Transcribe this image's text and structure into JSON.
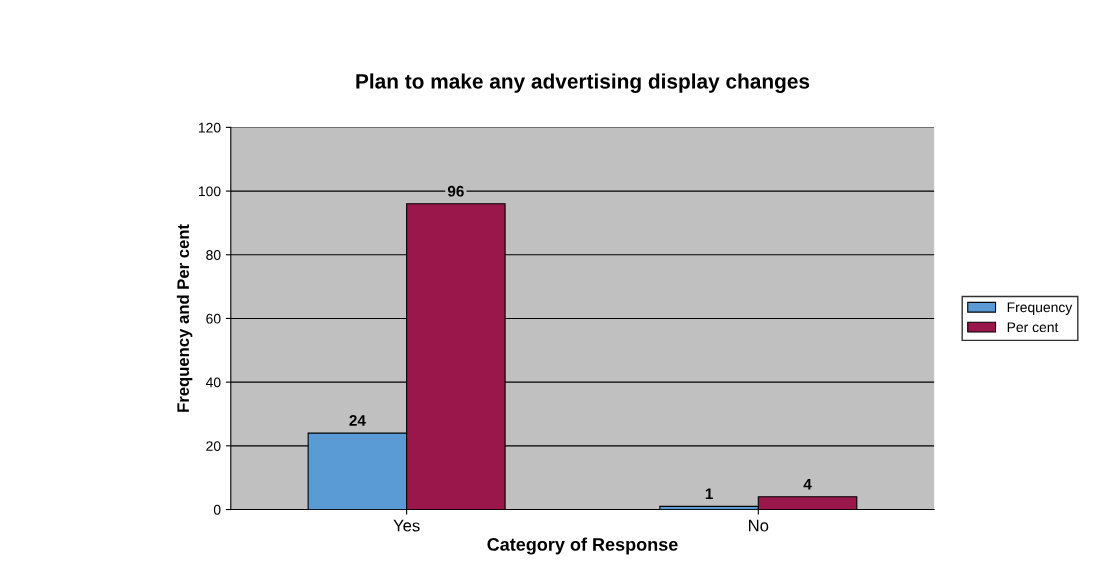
{
  "chart_data": {
    "type": "bar",
    "title": "Plan to make any advertising display changes",
    "xlabel": "Category of Response",
    "ylabel": "Frequency and Per cent",
    "categories": [
      "Yes",
      "No"
    ],
    "series": [
      {
        "name": "Frequency",
        "color": "#5b9bd5",
        "values": [
          24,
          1
        ]
      },
      {
        "name": "Per cent",
        "color": "#99174a",
        "values": [
          96,
          4
        ]
      }
    ],
    "ylim": [
      0,
      120
    ],
    "yticks": [
      0,
      20,
      40,
      60,
      80,
      100,
      120
    ],
    "grid": "y",
    "legend": "right",
    "data_labels": true
  }
}
